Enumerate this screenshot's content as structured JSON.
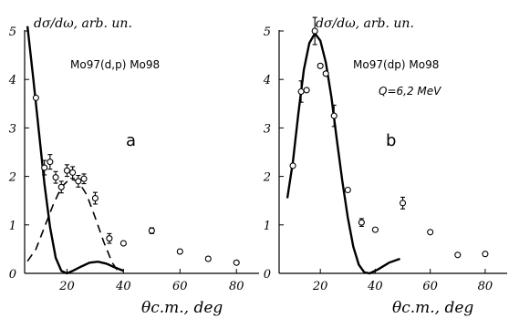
{
  "chart_data": [
    {
      "panel": "a",
      "type": "scatter",
      "ylabel": "dσ/dω, arb. un.",
      "xlabel": "θc.m., deg",
      "reaction": "Mo97(d,p) Mo98",
      "xlim": [
        5,
        88
      ],
      "ylim": [
        0,
        5
      ],
      "x_ticks": [
        "20",
        "40",
        "60",
        "80"
      ],
      "y_ticks": [
        "0",
        "1",
        "2",
        "3",
        "4",
        "5"
      ],
      "points": [
        {
          "x": 9,
          "y": 3.62,
          "err": 0
        },
        {
          "x": 12,
          "y": 2.18,
          "err": 0.15
        },
        {
          "x": 14,
          "y": 2.3,
          "err": 0.15
        },
        {
          "x": 16,
          "y": 1.98,
          "err": 0.12
        },
        {
          "x": 18,
          "y": 1.78,
          "err": 0.12
        },
        {
          "x": 20,
          "y": 2.12,
          "err": 0.12
        },
        {
          "x": 22,
          "y": 2.08,
          "err": 0.12
        },
        {
          "x": 24,
          "y": 1.9,
          "err": 0.12
        },
        {
          "x": 26,
          "y": 1.95,
          "err": 0.1
        },
        {
          "x": 30,
          "y": 1.55,
          "err": 0.12
        },
        {
          "x": 35,
          "y": 0.72,
          "err": 0.1
        },
        {
          "x": 40,
          "y": 0.62,
          "err": 0
        },
        {
          "x": 50,
          "y": 0.88,
          "err": 0.06
        },
        {
          "x": 60,
          "y": 0.45,
          "err": 0
        },
        {
          "x": 70,
          "y": 0.3,
          "err": 0.04
        },
        {
          "x": 80,
          "y": 0.22,
          "err": 0
        }
      ],
      "curve_solid": [
        [
          6,
          5.1
        ],
        [
          8,
          4.05
        ],
        [
          10,
          2.95
        ],
        [
          12,
          1.85
        ],
        [
          14,
          0.95
        ],
        [
          16,
          0.32
        ],
        [
          18,
          0.05
        ],
        [
          20,
          0.0
        ],
        [
          22,
          0.05
        ],
        [
          25,
          0.14
        ],
        [
          28,
          0.22
        ],
        [
          31,
          0.24
        ],
        [
          34,
          0.2
        ],
        [
          37,
          0.12
        ],
        [
          40,
          0.05
        ]
      ],
      "curve_dashed": [
        [
          6,
          0.25
        ],
        [
          9,
          0.5
        ],
        [
          12,
          0.95
        ],
        [
          15,
          1.4
        ],
        [
          18,
          1.78
        ],
        [
          21,
          1.95
        ],
        [
          24,
          1.9
        ],
        [
          27,
          1.62
        ],
        [
          30,
          1.15
        ],
        [
          33,
          0.65
        ],
        [
          36,
          0.22
        ],
        [
          38,
          0.05
        ]
      ]
    },
    {
      "panel": "b",
      "type": "scatter",
      "ylabel": "dσ/dω, arb. un.",
      "xlabel": "θc.m., deg",
      "reaction": "Mo97(dp) Mo98",
      "q_value": "Q=6,2 MeV",
      "xlim": [
        5,
        88
      ],
      "ylim": [
        0,
        5
      ],
      "x_ticks": [
        "20",
        "40",
        "60",
        "80"
      ],
      "y_ticks": [
        "0",
        "1",
        "2",
        "3",
        "4",
        "5"
      ],
      "points": [
        {
          "x": 10,
          "y": 2.22,
          "err": 0
        },
        {
          "x": 13,
          "y": 3.75,
          "err": 0.22
        },
        {
          "x": 15,
          "y": 3.78,
          "err": 0
        },
        {
          "x": 18,
          "y": 5.0,
          "err": 0.28
        },
        {
          "x": 20,
          "y": 4.28,
          "err": 0
        },
        {
          "x": 22,
          "y": 4.12,
          "err": 0
        },
        {
          "x": 25,
          "y": 3.25,
          "err": 0.22
        },
        {
          "x": 30,
          "y": 1.72,
          "err": 0
        },
        {
          "x": 35,
          "y": 1.05,
          "err": 0.08
        },
        {
          "x": 40,
          "y": 0.9,
          "err": 0
        },
        {
          "x": 50,
          "y": 1.45,
          "err": 0.12
        },
        {
          "x": 60,
          "y": 0.85,
          "err": 0
        },
        {
          "x": 70,
          "y": 0.38,
          "err": 0
        },
        {
          "x": 80,
          "y": 0.4,
          "err": 0
        }
      ],
      "curve_solid": [
        [
          8,
          1.55
        ],
        [
          10,
          2.3
        ],
        [
          12,
          3.3
        ],
        [
          14,
          4.2
        ],
        [
          16,
          4.75
        ],
        [
          18,
          4.95
        ],
        [
          20,
          4.8
        ],
        [
          22,
          4.35
        ],
        [
          24,
          3.65
        ],
        [
          26,
          2.75
        ],
        [
          28,
          1.9
        ],
        [
          30,
          1.15
        ],
        [
          32,
          0.55
        ],
        [
          34,
          0.18
        ],
        [
          36,
          0.02
        ],
        [
          38,
          0.0
        ],
        [
          41,
          0.08
        ],
        [
          45,
          0.22
        ],
        [
          49,
          0.3
        ]
      ]
    }
  ]
}
